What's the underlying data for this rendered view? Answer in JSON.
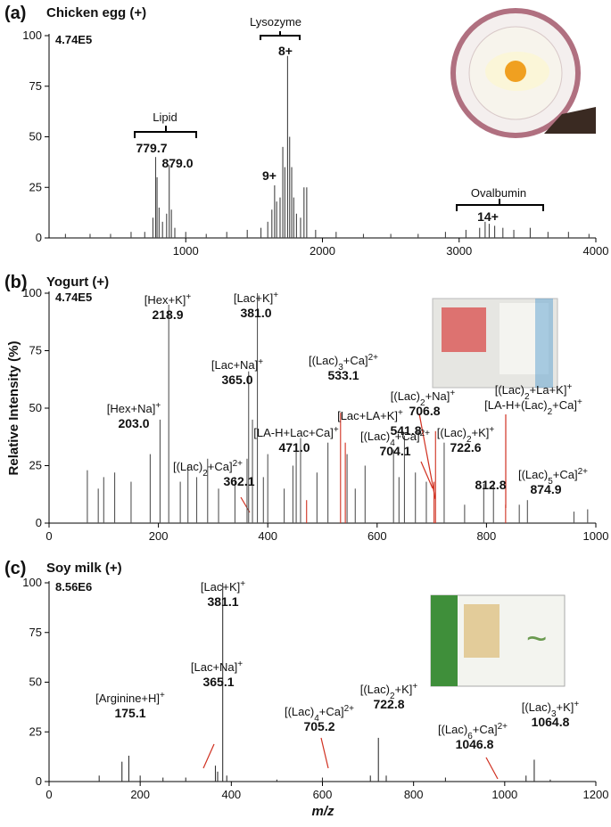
{
  "chart_data": [
    {
      "type": "bar",
      "panel": "(a)",
      "title": "Chicken egg (+)",
      "intensity": "4.74E5",
      "xlim": [
        0,
        4000
      ],
      "xticks": [
        1000,
        2000,
        3000,
        4000
      ],
      "ylim": [
        0,
        100
      ],
      "yticks": [
        0,
        25,
        50,
        75,
        100
      ],
      "series": [
        {
          "color": "#444444",
          "x": [
            120,
            300,
            450,
            600,
            700,
            760,
            779.7,
            790,
            805,
            830,
            860,
            879.0,
            895,
            920,
            1000,
            1150,
            1300,
            1450,
            1550,
            1600,
            1630,
            1650,
            1665,
            1690,
            1710,
            1725,
            1745,
            1760,
            1775,
            1790,
            1810,
            1840,
            1865,
            1885,
            1950,
            2100,
            2300,
            2500,
            2700,
            2900,
            3050,
            3150,
            3190,
            3220,
            3260,
            3320,
            3400,
            3520,
            3650,
            3800,
            3950
          ],
          "values": [
            2,
            2,
            2,
            3,
            3,
            10,
            40,
            30,
            15,
            8,
            12,
            36,
            14,
            5,
            3,
            2,
            3,
            4,
            5,
            8,
            14,
            26,
            18,
            20,
            45,
            35,
            90,
            50,
            35,
            20,
            12,
            10,
            25,
            25,
            4,
            3,
            2,
            2,
            2,
            3,
            4,
            5,
            8,
            7,
            6,
            5,
            4,
            5,
            3,
            3,
            2
          ]
        }
      ],
      "annotations": [
        {
          "lines": [
            [
              {
                "text": "Lipid"
              }
            ]
          ]
        },
        {
          "lines": [],
          "mass": "779.7"
        },
        {
          "lines": [],
          "mass": "879.0"
        },
        {
          "lines": [
            [
              {
                "text": "Lysozyme"
              }
            ]
          ]
        },
        {
          "lines": [],
          "mass": "8+"
        },
        {
          "lines": [],
          "mass": "9+"
        },
        {
          "lines": [
            [
              {
                "text": "Ovalbumin"
              }
            ]
          ]
        },
        {
          "lines": [],
          "mass": "14+"
        }
      ]
    },
    {
      "type": "bar",
      "panel": "(b)",
      "title": "Yogurt (+)",
      "intensity": "4.74E5",
      "ylabel": "Relative Intensity (%)",
      "xlim": [
        0,
        1000
      ],
      "xticks": [
        0,
        200,
        400,
        600,
        800,
        1000
      ],
      "ylim": [
        0,
        100
      ],
      "yticks": [
        0,
        25,
        50,
        75,
        100
      ],
      "series": [
        {
          "color": "#555555",
          "x": [
            70,
            90,
            100,
            120,
            150,
            185,
            203.0,
            218.9,
            240,
            254,
            270,
            290,
            310,
            340,
            362.1,
            365.0,
            372,
            381.0,
            392,
            400,
            430,
            446,
            452,
            460,
            490,
            510,
            545,
            560,
            578,
            630,
            640,
            650,
            670,
            690,
            722.6,
            760,
            795,
            812.8,
            860,
            874.9,
            960,
            985
          ],
          "values": [
            23,
            15,
            20,
            22,
            18,
            30,
            45,
            95,
            18,
            25,
            20,
            28,
            15,
            20,
            28,
            66,
            45,
            100,
            20,
            30,
            15,
            25,
            32,
            37,
            22,
            35,
            30,
            15,
            25,
            32,
            20,
            38,
            22,
            18,
            35,
            8,
            17,
            18,
            8,
            10,
            5,
            6
          ]
        },
        {
          "color": "#d03020",
          "x": [
            471.0,
            533.1,
            541.8,
            704.1,
            706.8,
            835
          ],
          "values": [
            10,
            48,
            35,
            18,
            40,
            8
          ]
        }
      ],
      "annotations": [
        {
          "lines": [
            [
              {
                "text": "[Hex+K]"
              },
              {
                "text": "+",
                "script": "sup"
              }
            ]
          ],
          "mass": "218.9"
        },
        {
          "lines": [
            [
              {
                "text": "[Lac+K]"
              },
              {
                "text": "+",
                "script": "sup"
              }
            ]
          ],
          "mass": "381.0"
        },
        {
          "lines": [
            [
              {
                "text": "[Lac+Na]"
              },
              {
                "text": "+",
                "script": "sup"
              }
            ]
          ],
          "mass": "365.0"
        },
        {
          "lines": [
            [
              {
                "text": "[(Lac)"
              },
              {
                "text": "3",
                "script": "sub"
              },
              {
                "text": "+Ca]"
              },
              {
                "text": "2+",
                "script": "sup"
              }
            ]
          ],
          "mass": "533.1"
        },
        {
          "lines": [
            [
              {
                "text": "[Hex+Na]"
              },
              {
                "text": "+",
                "script": "sup"
              }
            ]
          ],
          "mass": "203.0"
        },
        {
          "lines": [
            [
              {
                "text": "[Lac+LA+K]"
              },
              {
                "text": "+",
                "script": "sup"
              }
            ]
          ],
          "mass": "541.8"
        },
        {
          "lines": [
            [
              {
                "text": "[LA-H+Lac+Ca]"
              },
              {
                "text": "+",
                "script": "sup"
              }
            ]
          ],
          "mass": "471.0"
        },
        {
          "lines": [
            [
              {
                "text": "[(Lac)"
              },
              {
                "text": "2",
                "script": "sub"
              },
              {
                "text": "+Na]"
              },
              {
                "text": "+",
                "script": "sup"
              }
            ]
          ],
          "mass": "706.8"
        },
        {
          "lines": [
            [
              {
                "text": "[(Lac)"
              },
              {
                "text": "2",
                "script": "sub"
              },
              {
                "text": "+La+K]"
              },
              {
                "text": "+",
                "script": "sup"
              }
            ],
            [
              {
                "text": "[LA-H+(Lac)"
              },
              {
                "text": "2",
                "script": "sub"
              },
              {
                "text": "+Ca]"
              },
              {
                "text": "+",
                "script": "sup"
              }
            ]
          ]
        },
        {
          "lines": [
            [
              {
                "text": "[(Lac)"
              },
              {
                "text": "4",
                "script": "sub"
              },
              {
                "text": "+Ca]"
              },
              {
                "text": "2+",
                "script": "sup"
              }
            ]
          ],
          "mass": "704.1"
        },
        {
          "lines": [
            [
              {
                "text": "[(Lac)"
              },
              {
                "text": "2",
                "script": "sub"
              },
              {
                "text": "+K]"
              },
              {
                "text": "+",
                "script": "sup"
              }
            ]
          ],
          "mass": "722.6"
        },
        {
          "lines": [
            [
              {
                "text": "[(Lac)"
              },
              {
                "text": "2",
                "script": "sub"
              },
              {
                "text": "+Ca]"
              },
              {
                "text": "2+",
                "script": "sup"
              }
            ]
          ],
          "mass": "362.1"
        },
        {
          "lines": [],
          "mass": "812.8"
        },
        {
          "lines": [
            [
              {
                "text": "[(Lac)"
              },
              {
                "text": "5",
                "script": "sub"
              },
              {
                "text": "+Ca]"
              },
              {
                "text": "2+",
                "script": "sup"
              }
            ]
          ],
          "mass": "874.9"
        }
      ]
    },
    {
      "type": "bar",
      "panel": "(c)",
      "title": "Soy milk (+)",
      "intensity": "8.56E6",
      "xlabel": "m/z",
      "xlim": [
        0,
        1200
      ],
      "xticks": [
        0,
        200,
        400,
        600,
        800,
        1000,
        1200
      ],
      "ylim": [
        0,
        100
      ],
      "yticks": [
        0,
        25,
        50,
        75,
        100
      ],
      "series": [
        {
          "color": "#333333",
          "x": [
            110,
            160,
            175.1,
            200,
            250,
            300,
            365.1,
            370,
            381.1,
            390,
            500,
            600,
            705.2,
            722.8,
            740,
            870,
            1046.8,
            1064.8,
            1100
          ],
          "values": [
            3,
            10,
            13,
            3,
            2,
            2,
            8,
            5,
            100,
            3,
            1,
            2,
            3,
            22,
            3,
            2,
            3,
            11,
            1
          ]
        }
      ],
      "annotations": [
        {
          "lines": [
            [
              {
                "text": "[Lac+K]"
              },
              {
                "text": "+",
                "script": "sup"
              }
            ]
          ],
          "mass": "381.1"
        },
        {
          "lines": [
            [
              {
                "text": "[Lac+Na]"
              },
              {
                "text": "+",
                "script": "sup"
              }
            ]
          ],
          "mass": "365.1"
        },
        {
          "lines": [
            [
              {
                "text": "[Arginine+H]"
              },
              {
                "text": "+",
                "script": "sup"
              }
            ]
          ],
          "mass": "175.1"
        },
        {
          "lines": [
            [
              {
                "text": "[(Lac)"
              },
              {
                "text": "4",
                "script": "sub"
              },
              {
                "text": "+Ca]"
              },
              {
                "text": "2+",
                "script": "sup"
              }
            ]
          ],
          "mass": "705.2"
        },
        {
          "lines": [
            [
              {
                "text": "[(Lac)"
              },
              {
                "text": "2",
                "script": "sub"
              },
              {
                "text": "+K]"
              },
              {
                "text": "+",
                "script": "sup"
              }
            ]
          ],
          "mass": "722.8"
        },
        {
          "lines": [
            [
              {
                "text": "[(Lac)"
              },
              {
                "text": "6",
                "script": "sub"
              },
              {
                "text": "+Ca]"
              },
              {
                "text": "2+",
                "script": "sup"
              }
            ]
          ],
          "mass": "1046.8"
        },
        {
          "lines": [
            [
              {
                "text": "[(Lac)"
              },
              {
                "text": "3",
                "script": "sub"
              },
              {
                "text": "+K]"
              },
              {
                "text": "+",
                "script": "sup"
              }
            ]
          ],
          "mass": "1064.8"
        }
      ]
    }
  ]
}
